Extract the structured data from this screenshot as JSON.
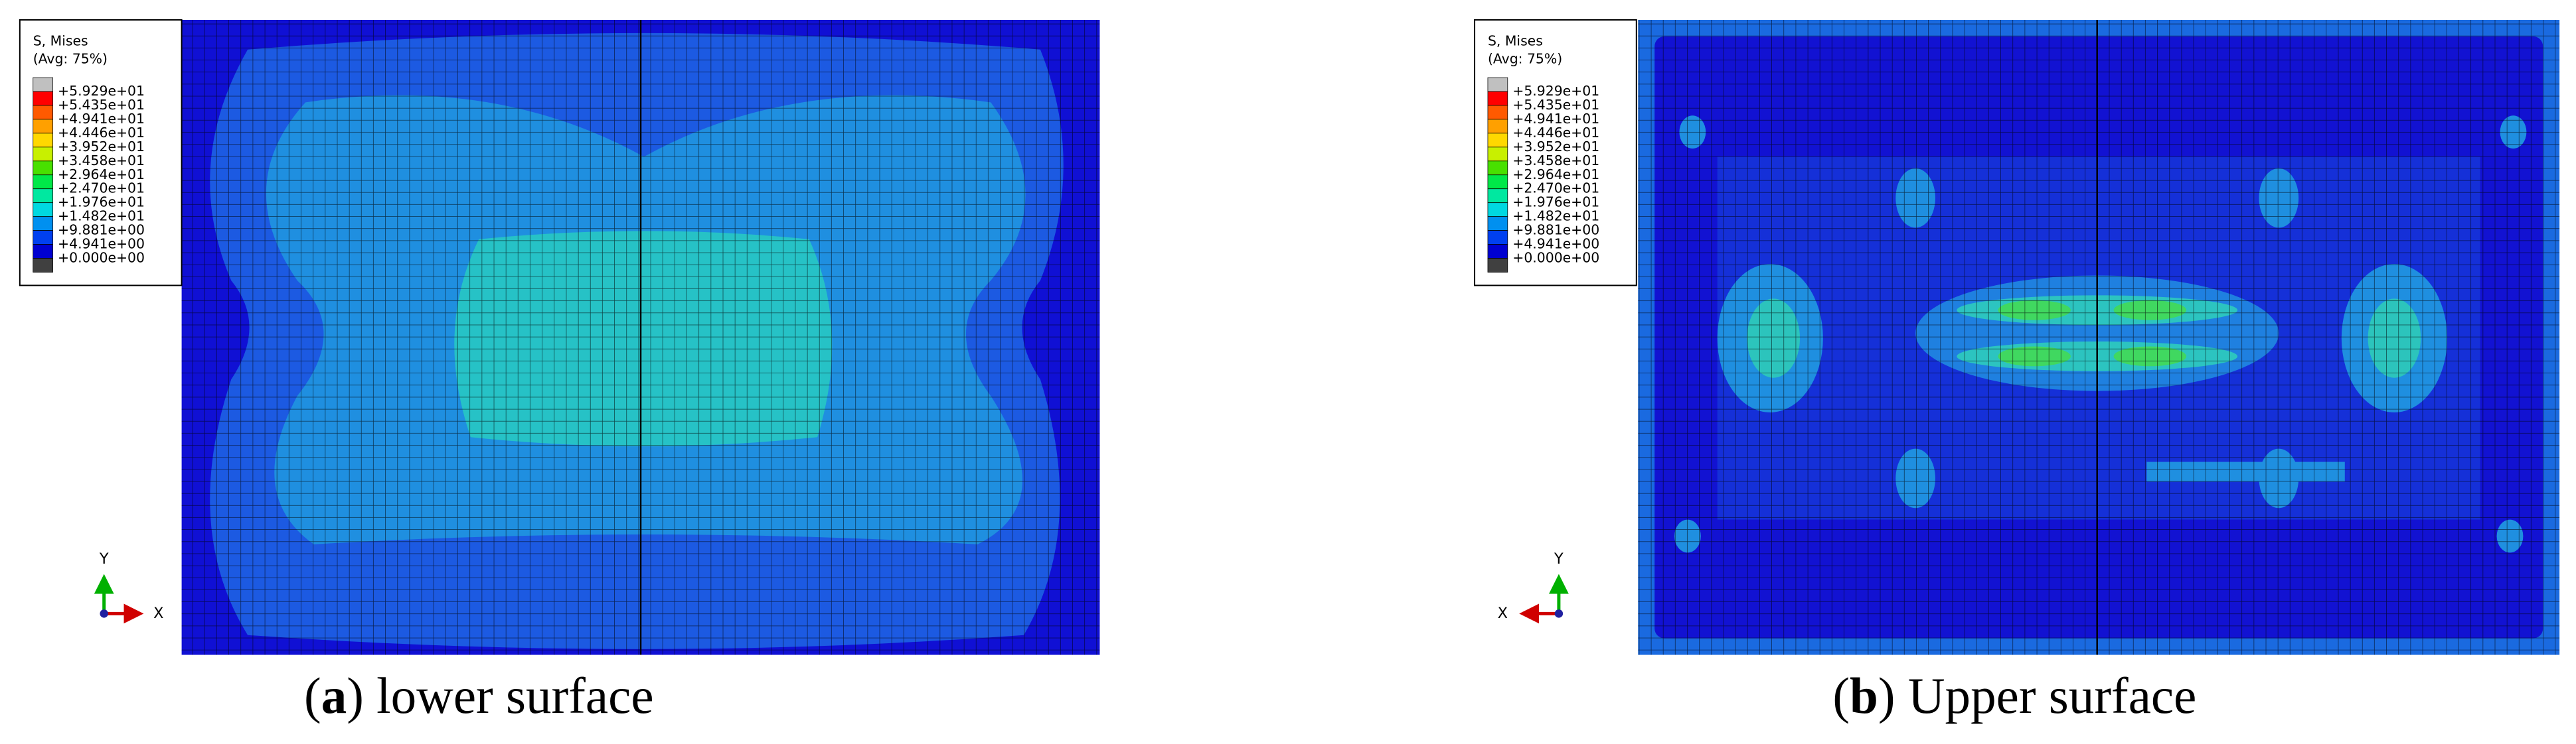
{
  "panels": [
    {
      "legend": {
        "title": "S, Mises",
        "subtitle": "(Avg: 75%)",
        "labels": [
          "+5.929e+01",
          "+5.435e+01",
          "+4.941e+01",
          "+4.446e+01",
          "+3.952e+01",
          "+3.458e+01",
          "+2.964e+01",
          "+2.470e+01",
          "+1.976e+01",
          "+1.482e+01",
          "+9.881e+00",
          "+4.941e+00",
          "+0.000e+00"
        ],
        "colors": [
          "#c0c0c0",
          "#ff0000",
          "#ff5a00",
          "#ffa000",
          "#ffd800",
          "#c8f000",
          "#48e000",
          "#00e848",
          "#00e8a0",
          "#00d8e0",
          "#0090f0",
          "#0040f0",
          "#0000d0",
          "#404040"
        ]
      },
      "axes": {
        "y": "Y",
        "x": "X"
      },
      "caption": [
        "(",
        "a",
        ") lower surface"
      ]
    },
    {
      "legend": {
        "title": "S, Mises",
        "subtitle": "(Avg: 75%)",
        "labels": [
          "+5.929e+01",
          "+5.435e+01",
          "+4.941e+01",
          "+4.446e+01",
          "+3.952e+01",
          "+3.458e+01",
          "+2.964e+01",
          "+2.470e+01",
          "+1.976e+01",
          "+1.482e+01",
          "+9.881e+00",
          "+4.941e+00",
          "+0.000e+00"
        ],
        "colors": [
          "#c0c0c0",
          "#ff0000",
          "#ff5a00",
          "#ffa000",
          "#ffd800",
          "#c8f000",
          "#48e000",
          "#00e848",
          "#00e8a0",
          "#00d8e0",
          "#0090f0",
          "#0040f0",
          "#0000d0",
          "#404040"
        ]
      },
      "axes": {
        "y": "Y",
        "x": "X"
      },
      "caption": [
        "(",
        "b",
        ") Upper surface"
      ]
    }
  ]
}
